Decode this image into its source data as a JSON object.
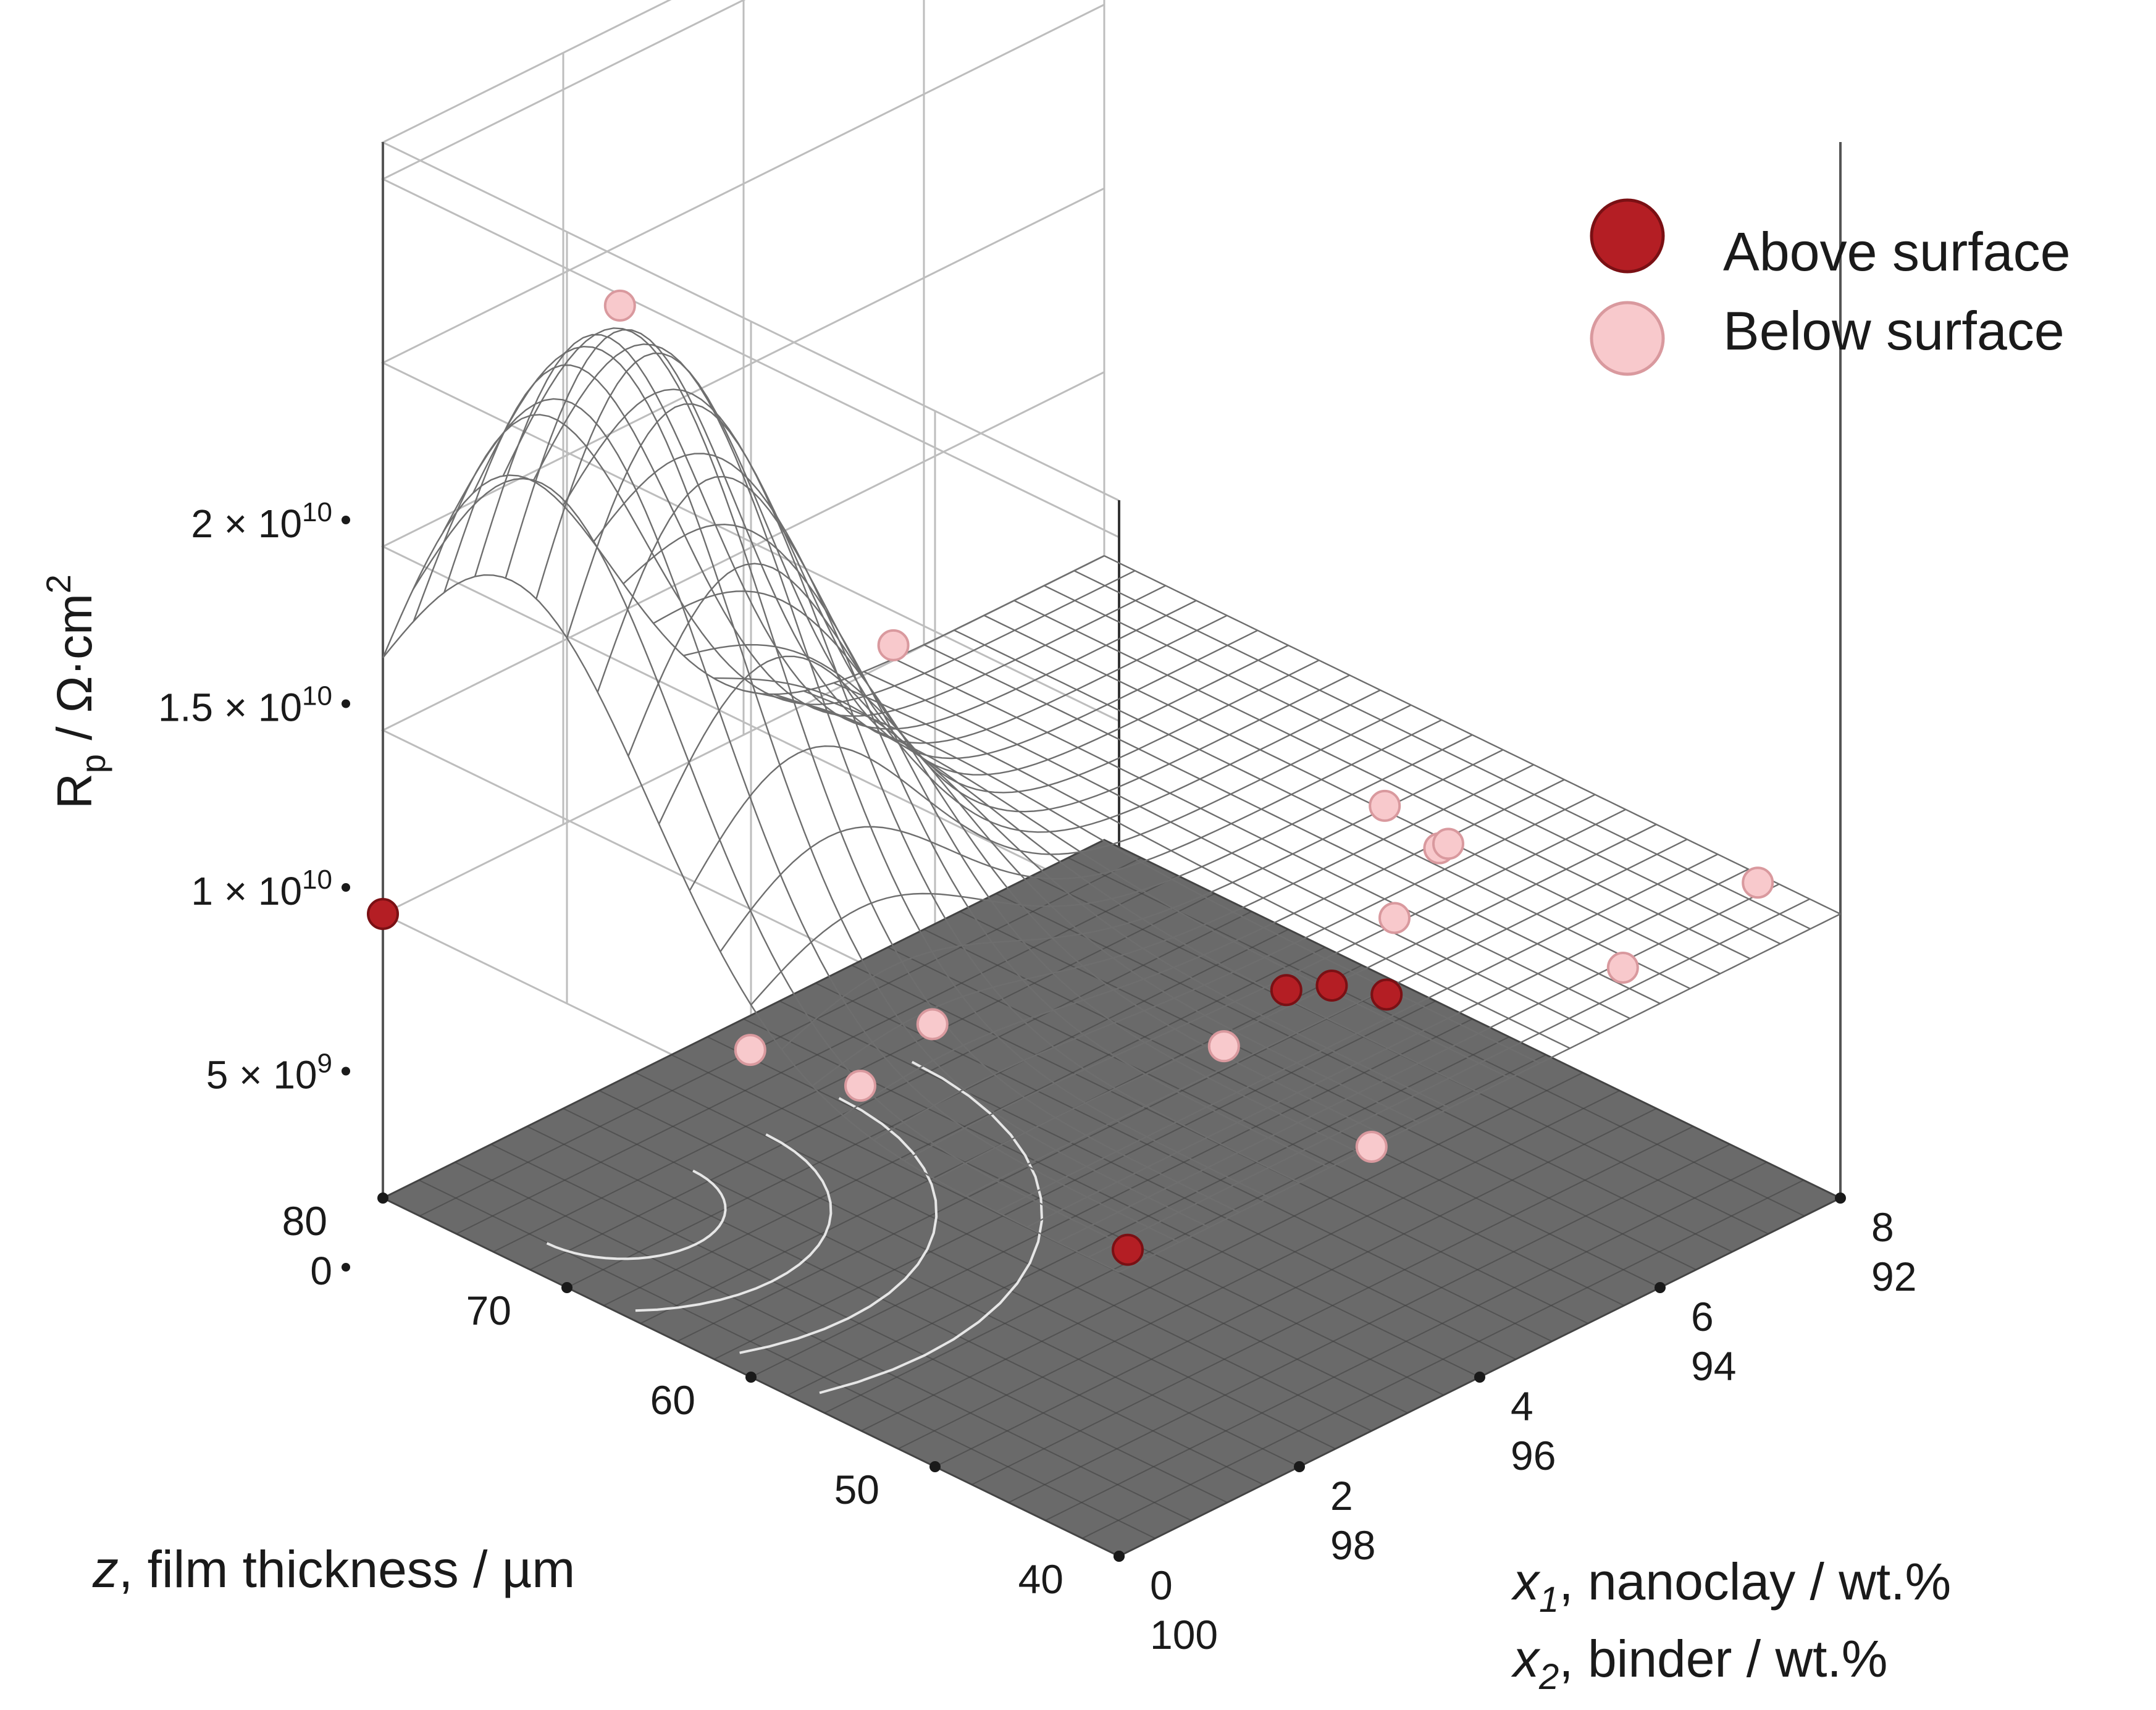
{
  "chart_data": {
    "type": "surface3d",
    "title": "",
    "z_axis": {
      "label": "R",
      "label_sub": "p",
      "label_unit": " / Ω·cm",
      "label_sup": "2",
      "range": [
        0,
        20000000000
      ],
      "ticks": [
        {
          "value": 0,
          "base": "0",
          "exp": ""
        },
        {
          "value": 5000000000,
          "base": "5 × 10",
          "exp": "9"
        },
        {
          "value": 10000000000,
          "base": "1 × 10",
          "exp": "10"
        },
        {
          "value": 15000000000,
          "base": "1.5 × 10",
          "exp": "10"
        },
        {
          "value": 20000000000,
          "base": "2 × 10",
          "exp": "10"
        }
      ]
    },
    "thickness_axis": {
      "var": "z",
      "label_rest": ", film thickness / µm",
      "range": [
        40,
        80
      ],
      "ticks": [
        "80",
        "70",
        "60",
        "50",
        "40"
      ]
    },
    "composition_axis": {
      "x1_var": "x",
      "x1_sub": "1",
      "x1_label_rest": ", nanoclay / wt.%",
      "x2_var": "x",
      "x2_sub": "2",
      "x2_label_rest": ", binder / wt.%",
      "range": [
        0,
        8
      ],
      "ticks_x1": [
        "0",
        "2",
        "4",
        "6",
        "8"
      ],
      "ticks_x2": [
        "100",
        "98",
        "96",
        "94",
        "92"
      ]
    },
    "surface": {
      "description_model": "peak",
      "peak_value": 16000000000,
      "peak_thickness": 73,
      "peak_nanoclay": 1.2
    },
    "legend": [
      {
        "label": "Above surface",
        "color": "#b41e24"
      },
      {
        "label": "Below surface",
        "color": "#f8c9cc"
      }
    ],
    "points": [
      {
        "nanoclay": 0.0,
        "thickness": 80,
        "rp": 0,
        "group": "above"
      },
      {
        "nanoclay": 1.2,
        "thickness": 73,
        "rp": 16800000000,
        "group": "below"
      },
      {
        "nanoclay": 2.6,
        "thickness": 65,
        "rp": 7800000000,
        "group": "below"
      },
      {
        "nanoclay": 1.4,
        "thickness": 57,
        "rp": 900000000,
        "group": "below"
      },
      {
        "nanoclay": 0.4,
        "thickness": 62,
        "rp": 200000000,
        "group": "below"
      },
      {
        "nanoclay": 0.6,
        "thickness": 57,
        "rp": 200000000,
        "group": "below"
      },
      {
        "nanoclay": 3.0,
        "thickness": 49,
        "rp": 300000000,
        "group": "below"
      },
      {
        "nanoclay": 0.3,
        "thickness": 41,
        "rp": 0,
        "group": "above"
      },
      {
        "nanoclay": 2.8,
        "thickness": 40,
        "rp": 0,
        "group": "below"
      },
      {
        "nanoclay": 4.1,
        "thickness": 51,
        "rp": 0,
        "group": "above"
      },
      {
        "nanoclay": 4.4,
        "thickness": 50,
        "rp": 0,
        "group": "above"
      },
      {
        "nanoclay": 4.6,
        "thickness": 48,
        "rp": 0,
        "group": "above"
      },
      {
        "nanoclay": 5.3,
        "thickness": 51,
        "rp": 500000000,
        "group": "below"
      },
      {
        "nanoclay": 5.6,
        "thickness": 53,
        "rp": 2700000000,
        "group": "below"
      },
      {
        "nanoclay": 6.0,
        "thickness": 52,
        "rp": 1300000000,
        "group": "below"
      },
      {
        "nanoclay": 6.1,
        "thickness": 52,
        "rp": 1300000000,
        "group": "below"
      },
      {
        "nanoclay": 6.2,
        "thickness": 43,
        "rp": 0,
        "group": "below"
      },
      {
        "nanoclay": 7.9,
        "thickness": 44,
        "rp": 0,
        "group": "below"
      }
    ]
  }
}
